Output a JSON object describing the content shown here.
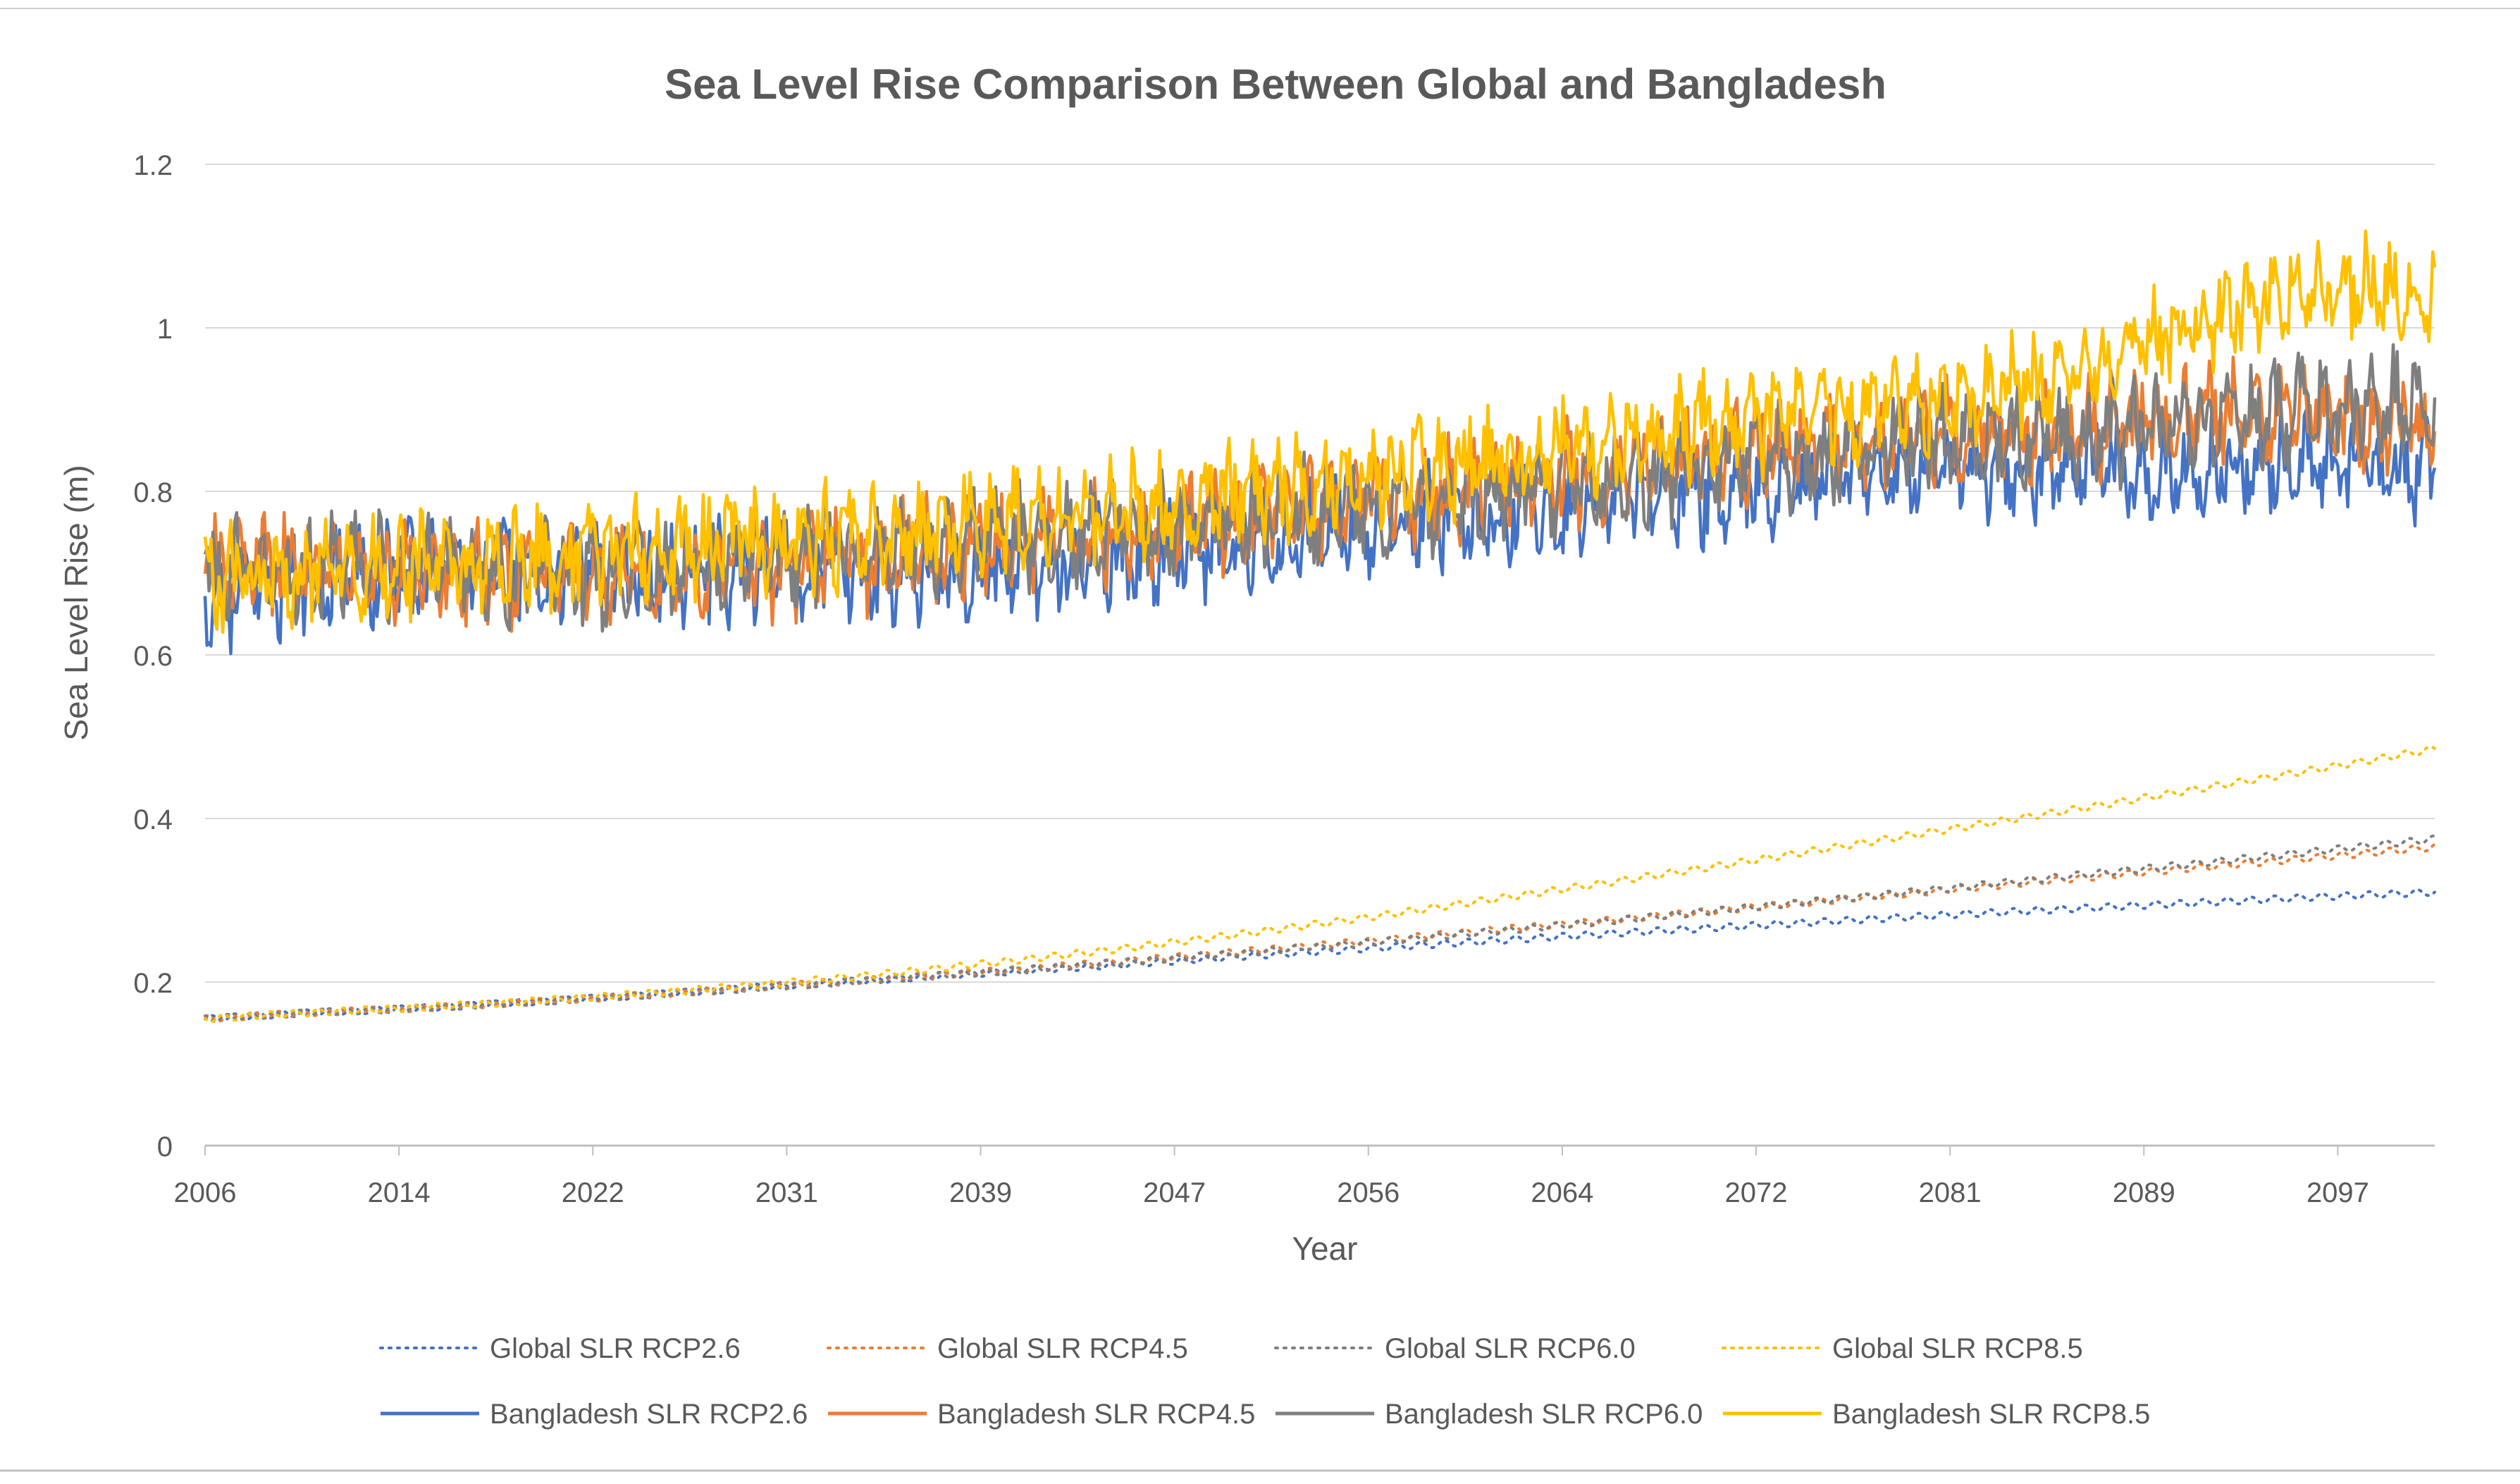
{
  "chart_data": {
    "type": "line",
    "title": "Sea Level Rise Comparison Between Global and Bangladesh",
    "xlabel": "Year",
    "ylabel": "Sea Level Rise (m)",
    "x_range": [
      2006,
      2100
    ],
    "ylim": [
      0,
      1.2
    ],
    "y_ticks": [
      "0",
      "0.2",
      "0.4",
      "0.6",
      "0.8",
      "1",
      "1.2"
    ],
    "x_ticks": [
      "2006",
      "2014",
      "2022",
      "2031",
      "2039",
      "2047",
      "2056",
      "2064",
      "2072",
      "2081",
      "2089",
      "2097"
    ],
    "grid": "horizontal",
    "legend": "bottom",
    "x": [
      2006,
      2010,
      2015,
      2020,
      2025,
      2030,
      2035,
      2040,
      2045,
      2050,
      2055,
      2060,
      2065,
      2070,
      2075,
      2080,
      2085,
      2090,
      2095,
      2100
    ],
    "series": [
      {
        "name": "Global SLR RCP2.6",
        "style": "dotted",
        "color": "#4472c4",
        "values": [
          0.155,
          0.162,
          0.168,
          0.176,
          0.185,
          0.195,
          0.204,
          0.213,
          0.222,
          0.232,
          0.241,
          0.25,
          0.259,
          0.267,
          0.275,
          0.283,
          0.29,
          0.297,
          0.304,
          0.31
        ]
      },
      {
        "name": "Global SLR RCP4.5",
        "style": "dotted",
        "color": "#ed7d31",
        "values": [
          0.155,
          0.162,
          0.168,
          0.176,
          0.185,
          0.195,
          0.205,
          0.215,
          0.226,
          0.238,
          0.25,
          0.263,
          0.275,
          0.288,
          0.301,
          0.314,
          0.327,
          0.34,
          0.352,
          0.365
        ]
      },
      {
        "name": "Global SLR RCP6.0",
        "style": "dotted",
        "color": "#7f7f7f",
        "values": [
          0.155,
          0.162,
          0.168,
          0.176,
          0.185,
          0.194,
          0.204,
          0.214,
          0.225,
          0.236,
          0.248,
          0.261,
          0.274,
          0.288,
          0.302,
          0.316,
          0.331,
          0.345,
          0.36,
          0.375
        ]
      },
      {
        "name": "Global SLR RCP8.5",
        "style": "dotted",
        "color": "#ffc000",
        "values": [
          0.155,
          0.162,
          0.169,
          0.177,
          0.187,
          0.198,
          0.211,
          0.226,
          0.242,
          0.26,
          0.279,
          0.3,
          0.321,
          0.343,
          0.366,
          0.389,
          0.412,
          0.436,
          0.46,
          0.485
        ]
      },
      {
        "name": "Bangladesh SLR RCP2.6",
        "style": "solid",
        "color": "#4472c4",
        "values": [
          0.67,
          0.69,
          0.71,
          0.7,
          0.7,
          0.7,
          0.7,
          0.71,
          0.72,
          0.74,
          0.76,
          0.77,
          0.79,
          0.8,
          0.82,
          0.83,
          0.83,
          0.83,
          0.83,
          0.82
        ]
      },
      {
        "name": "Bangladesh SLR RCP4.5",
        "style": "solid",
        "color": "#ed7d31",
        "values": [
          0.7,
          0.71,
          0.7,
          0.7,
          0.7,
          0.71,
          0.72,
          0.74,
          0.75,
          0.77,
          0.79,
          0.81,
          0.83,
          0.85,
          0.86,
          0.87,
          0.88,
          0.89,
          0.9,
          0.88
        ]
      },
      {
        "name": "Bangladesh SLR RCP6.0",
        "style": "solid",
        "color": "#7f7f7f",
        "values": [
          0.7,
          0.7,
          0.71,
          0.7,
          0.7,
          0.72,
          0.74,
          0.74,
          0.75,
          0.77,
          0.78,
          0.8,
          0.81,
          0.83,
          0.85,
          0.86,
          0.87,
          0.88,
          0.9,
          0.91
        ]
      },
      {
        "name": "Bangladesh SLR RCP8.5",
        "style": "solid",
        "color": "#ffc000",
        "values": [
          0.69,
          0.7,
          0.71,
          0.72,
          0.73,
          0.74,
          0.75,
          0.76,
          0.78,
          0.8,
          0.82,
          0.84,
          0.86,
          0.88,
          0.9,
          0.92,
          0.94,
          1.0,
          1.05,
          1.05
        ]
      }
    ]
  }
}
